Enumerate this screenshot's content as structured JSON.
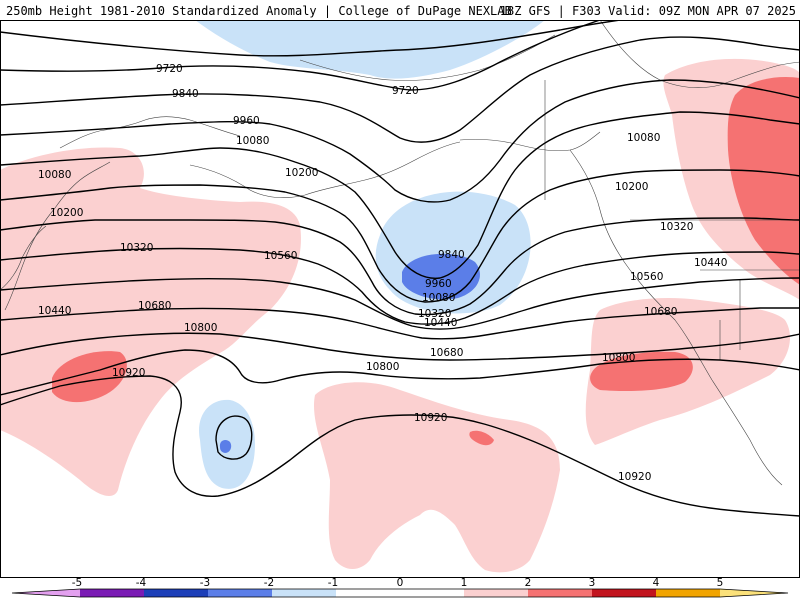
{
  "header": {
    "left_title": "250mb Height 1981-2010 Standardized Anomaly | College of DuPage NEXLAB",
    "right_title": "18Z GFS | F303 Valid: 09Z MON APR 07 2025"
  },
  "colors": {
    "neg5": "#e3a0ef",
    "neg4": "#7a1bb4",
    "neg3": "#1c3fb8",
    "neg2": "#5b7ee8",
    "neg1": "#c9e2f8",
    "zero": "#ffffff",
    "pos1": "#fbd0d0",
    "pos2": "#f57272",
    "pos3": "#c2141e",
    "pos4": "#f1a400",
    "pos5": "#fbe17a",
    "contour": "#000000",
    "coast": "#444444"
  },
  "contours": {
    "labels": [
      {
        "text": "9720",
        "id": "c9720a"
      },
      {
        "text": "9720",
        "id": "c9720b"
      },
      {
        "text": "9840",
        "id": "c9840a"
      },
      {
        "text": "9840",
        "id": "c9840b"
      },
      {
        "text": "9960",
        "id": "c9960a"
      },
      {
        "text": "9960",
        "id": "c9960b"
      },
      {
        "text": "10080",
        "id": "c10080a"
      },
      {
        "text": "10080",
        "id": "c10080b"
      },
      {
        "text": "10080",
        "id": "c10080c"
      },
      {
        "text": "10080",
        "id": "c10080d"
      },
      {
        "text": "10200",
        "id": "c10200a"
      },
      {
        "text": "10200",
        "id": "c10200b"
      },
      {
        "text": "10200",
        "id": "c10200c"
      },
      {
        "text": "10320",
        "id": "c10320a"
      },
      {
        "text": "10320",
        "id": "c10320b"
      },
      {
        "text": "10320",
        "id": "c10320c"
      },
      {
        "text": "10440",
        "id": "c10440a"
      },
      {
        "text": "10440",
        "id": "c10440b"
      },
      {
        "text": "10440",
        "id": "c10440c"
      },
      {
        "text": "10560",
        "id": "c10560a"
      },
      {
        "text": "10560",
        "id": "c10560b"
      },
      {
        "text": "10680",
        "id": "c10680a"
      },
      {
        "text": "10680",
        "id": "c10680b"
      },
      {
        "text": "10680",
        "id": "c10680c"
      },
      {
        "text": "10800",
        "id": "c10800a"
      },
      {
        "text": "10800",
        "id": "c10800b"
      },
      {
        "text": "10800",
        "id": "c10800c"
      },
      {
        "text": "10920",
        "id": "c10920a"
      },
      {
        "text": "10920",
        "id": "c10920b"
      },
      {
        "text": "10920",
        "id": "c10920c"
      }
    ]
  },
  "legend": {
    "ticks": [
      "-5",
      "-4",
      "-3",
      "-2",
      "-1",
      "0",
      "1",
      "2",
      "3",
      "4",
      "5"
    ]
  }
}
